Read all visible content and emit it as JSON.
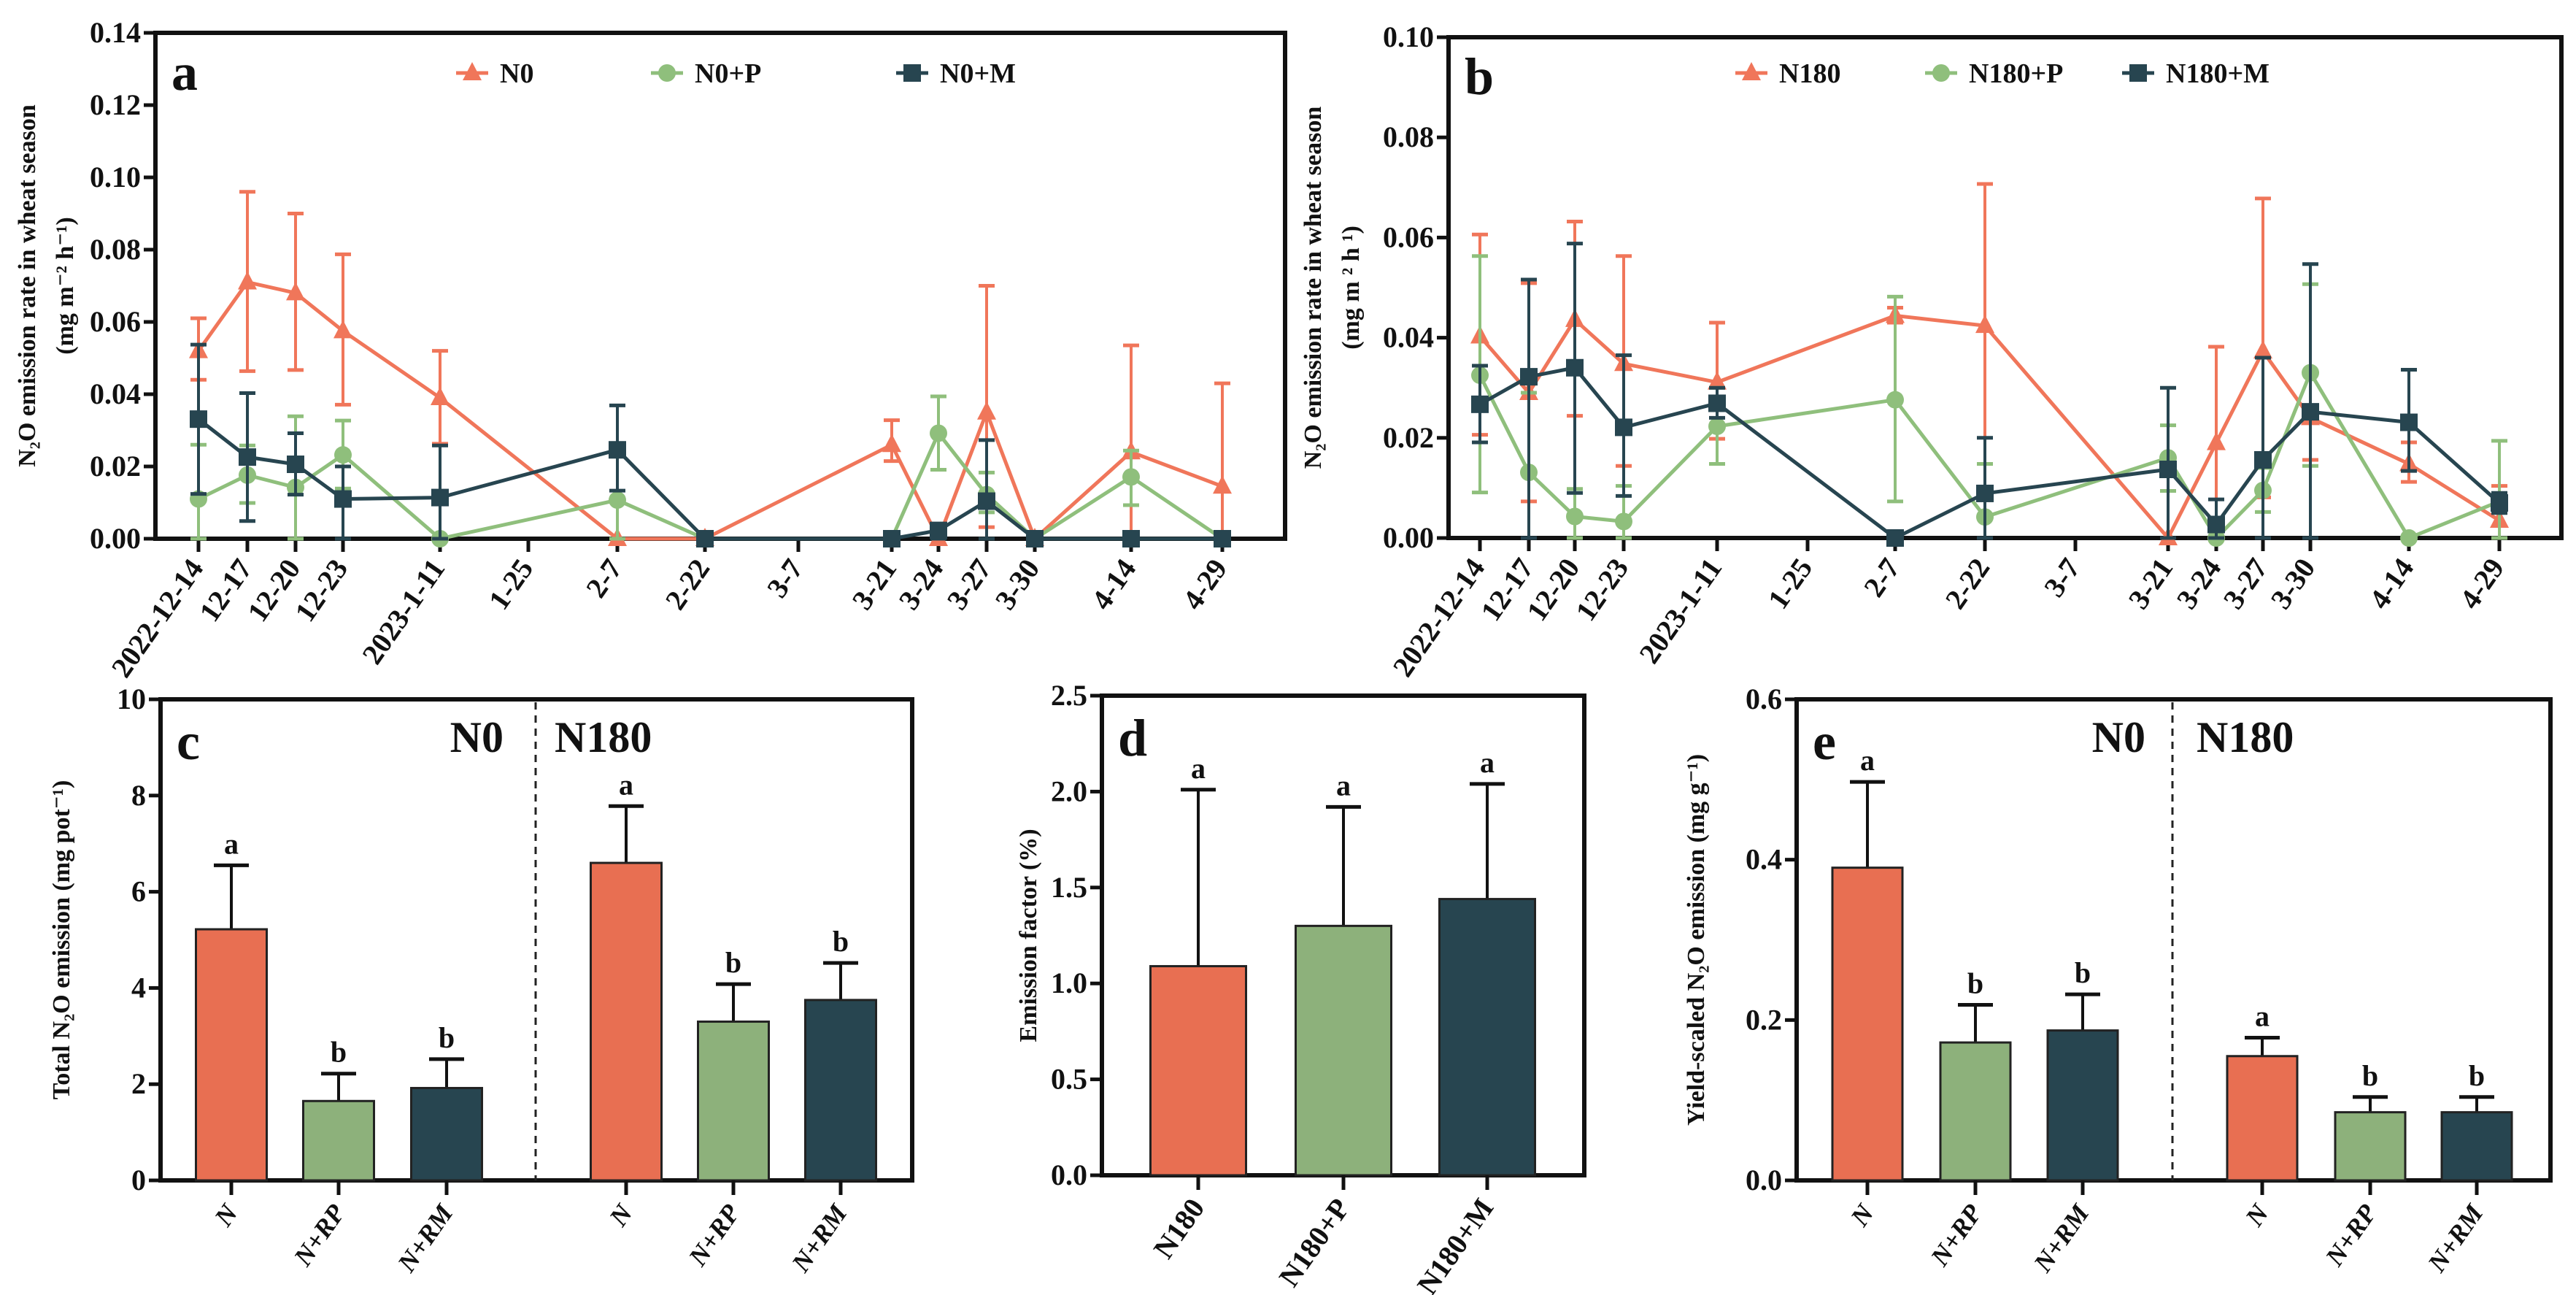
{
  "colors": {
    "orange": "#E86F52",
    "green": "#8DB17B",
    "dark": "#274550",
    "orange_line": "#F0765A",
    "green_line": "#8FBF7C"
  },
  "chart_data": [
    {
      "id": "a",
      "type": "line",
      "panel_letter": "a",
      "ylabel_line1": "N₂O emission rate in wheat season",
      "ylabel_line2": "(mg m⁻² h⁻¹)",
      "ylim": [
        0,
        0.14
      ],
      "yticks": [
        "0.00",
        "0.02",
        "0.04",
        "0.06",
        "0.08",
        "0.10",
        "0.12",
        "0.14"
      ],
      "categories": [
        "2022-12-14",
        "12-17",
        "12-20",
        "12-23",
        "2023-1-11",
        "1-25",
        "2-7",
        "2-22",
        "3-7",
        "3-21",
        "3-24",
        "3-27",
        "3-30",
        "4-14",
        "4-29"
      ],
      "legend_position": "top-center",
      "series": [
        {
          "name": "N0",
          "color_key": "orange_line",
          "marker": "triangle",
          "values": [
            0.052,
            0.071,
            0.068,
            0.0575,
            0.039,
            null,
            0,
            0,
            null,
            0.026,
            0,
            0.035,
            0,
            0.024,
            0.0145
          ],
          "err_upper": [
            0.061,
            0.096,
            0.09,
            0.0787,
            0.052,
            null,
            0,
            0,
            null,
            0.0328,
            0,
            0.07,
            0,
            0.0535,
            0.043
          ],
          "err_lower": [
            0.044,
            0.0464,
            0.0467,
            0.0371,
            0.0263,
            null,
            0,
            0,
            null,
            0.0215,
            0,
            0.0032,
            0,
            0,
            0
          ]
        },
        {
          "name": "N0+P",
          "color_key": "green_line",
          "marker": "circle",
          "values": [
            0.011,
            0.0176,
            0.0142,
            0.0232,
            0,
            null,
            0.0107,
            0,
            null,
            0,
            0.0292,
            0.0122,
            0,
            0.0171,
            0
          ],
          "err_upper": [
            0.026,
            0.0258,
            0.0339,
            0.0327,
            0,
            null,
            0.0237,
            0,
            null,
            0,
            0.0394,
            0.0183,
            0,
            0.0244,
            0
          ],
          "err_lower": [
            0,
            0.0099,
            0,
            0.0139,
            0,
            null,
            0,
            0,
            null,
            0,
            0.0191,
            0.0073,
            0,
            0.0093,
            0
          ]
        },
        {
          "name": "N0+M",
          "color_key": "dark",
          "marker": "square",
          "values": [
            0.0331,
            0.0226,
            0.0206,
            0.011,
            0.0114,
            null,
            0.0246,
            0,
            null,
            0,
            0.0023,
            0.0104,
            0,
            0,
            0
          ],
          "err_upper": [
            0.0537,
            0.0403,
            0.0292,
            0.02,
            0.0258,
            null,
            0.0369,
            0,
            null,
            0,
            0.004,
            0.0273,
            0,
            0,
            0
          ],
          "err_lower": [
            0.0124,
            0.0049,
            0.0122,
            0,
            0,
            null,
            0.0133,
            0,
            null,
            0,
            0,
            0,
            0,
            0,
            0
          ]
        }
      ]
    },
    {
      "id": "b",
      "type": "line",
      "panel_letter": "b",
      "ylabel_line1": "N₂O emission rate in wheat season",
      "ylabel_line2": "(mg m ² h ¹)",
      "ylim": [
        0,
        0.1
      ],
      "yticks": [
        "0.00",
        "0.02",
        "0.04",
        "0.06",
        "0.08",
        "0.10"
      ],
      "categories": [
        "2022-12-14",
        "12-17",
        "12-20",
        "12-23",
        "2023-1-11",
        "1-25",
        "2-7",
        "2-22",
        "3-7",
        "3-21",
        "3-24",
        "3-27",
        "3-30",
        "4-14",
        "4-29"
      ],
      "legend_position": "top-center",
      "series": [
        {
          "name": "N180",
          "color_key": "orange_line",
          "marker": "triangle",
          "values": [
            0.0403,
            0.029,
            0.0436,
            0.0348,
            0.0311,
            null,
            0.0444,
            0.0424,
            null,
            0,
            0.019,
            0.0373,
            0.024,
            0.0148,
            0.0035
          ],
          "err_upper": [
            0.0606,
            0.0509,
            0.0632,
            0.0563,
            0.043,
            null,
            0.046,
            0.0707,
            null,
            0,
            0.0382,
            0.0678,
            0.0332,
            0.0191,
            0.0104
          ],
          "err_lower": [
            0.0206,
            0.0073,
            0.0244,
            0.0144,
            0.0198,
            null,
            0.043,
            0.0148,
            null,
            0,
            0,
            0.0081,
            0.0156,
            0.0112,
            0
          ]
        },
        {
          "name": "N180+P",
          "color_key": "green_line",
          "marker": "circle",
          "values": [
            0.0325,
            0.0131,
            0.0043,
            0.0033,
            0.0223,
            null,
            0.0276,
            0.0042,
            null,
            0.016,
            0,
            0.0095,
            0.033,
            0,
            0.0073
          ],
          "err_upper": [
            0.0563,
            0.029,
            0.0098,
            0.0104,
            0.03,
            null,
            0.0482,
            0.0148,
            null,
            0.0225,
            0,
            0.014,
            0.0507,
            0,
            0.0194
          ],
          "err_lower": [
            0.0091,
            0,
            0,
            0,
            0.0148,
            null,
            0.0073,
            0,
            null,
            0.0094,
            0,
            0.0052,
            0.0144,
            0,
            0
          ]
        },
        {
          "name": "N180+M",
          "color_key": "dark",
          "marker": "square",
          "values": [
            0.0267,
            0.0322,
            0.034,
            0.0221,
            0.0269,
            null,
            0,
            0.0089,
            null,
            0.0137,
            0.0027,
            0.0156,
            0.0252,
            0.0231,
            0.007
          ],
          "err_upper": [
            0.0344,
            0.0516,
            0.0588,
            0.0365,
            0.03,
            null,
            0,
            0.02,
            null,
            0.03,
            0.0077,
            0.036,
            0.0547,
            0.0336,
            0.009
          ],
          "err_lower": [
            0.0191,
            0,
            0.009,
            0.0084,
            0.024,
            null,
            0,
            0,
            null,
            0,
            0,
            0,
            0,
            0.0134,
            0.005
          ]
        }
      ]
    },
    {
      "id": "c",
      "type": "bar",
      "panel_letter": "c",
      "ylabel": "Total N₂O emission (mg pot⁻¹)",
      "ylim": [
        0,
        10
      ],
      "yticks": [
        "0",
        "2",
        "4",
        "6",
        "8",
        "10"
      ],
      "groups": [
        "N0",
        "N180"
      ],
      "categories": [
        "N",
        "N+RP",
        "N+RM",
        "N",
        "N+RP",
        "N+RM"
      ],
      "color_keys": [
        "orange",
        "green",
        "dark",
        "orange",
        "green",
        "dark"
      ],
      "values": [
        5.22,
        1.65,
        1.92,
        6.6,
        3.3,
        3.75
      ],
      "err_upper": [
        6.55,
        2.22,
        2.52,
        7.78,
        4.08,
        4.52
      ],
      "significance": [
        "a",
        "b",
        "b",
        "a",
        "b",
        "b"
      ]
    },
    {
      "id": "d",
      "type": "bar",
      "panel_letter": "d",
      "ylabel": "Emission factor (%)",
      "ylim": [
        0,
        2.5
      ],
      "yticks": [
        "0.0",
        "0.5",
        "1.0",
        "1.5",
        "2.0",
        "2.5"
      ],
      "categories": [
        "N180",
        "N180+P",
        "N180+M"
      ],
      "color_keys": [
        "orange",
        "green",
        "dark"
      ],
      "values": [
        1.09,
        1.3,
        1.44
      ],
      "err_upper": [
        2.01,
        1.92,
        2.04
      ],
      "significance": [
        "a",
        "a",
        "a"
      ]
    },
    {
      "id": "e",
      "type": "bar",
      "panel_letter": "e",
      "ylabel": "Yield-scaled N₂O emission (mg g⁻¹)",
      "ylim": [
        0,
        0.6
      ],
      "yticks": [
        "0.0",
        "0.2",
        "0.4",
        "0.6"
      ],
      "groups": [
        "N0",
        "N180"
      ],
      "categories": [
        "N",
        "N+RP",
        "N+RM",
        "N",
        "N+RP",
        "N+RM"
      ],
      "color_keys": [
        "orange",
        "green",
        "dark",
        "orange",
        "green",
        "dark"
      ],
      "values": [
        0.39,
        0.172,
        0.187,
        0.155,
        0.085,
        0.085
      ],
      "err_upper": [
        0.497,
        0.219,
        0.232,
        0.178,
        0.104,
        0.104
      ],
      "significance": [
        "a",
        "b",
        "b",
        "a",
        "b",
        "b"
      ]
    }
  ]
}
